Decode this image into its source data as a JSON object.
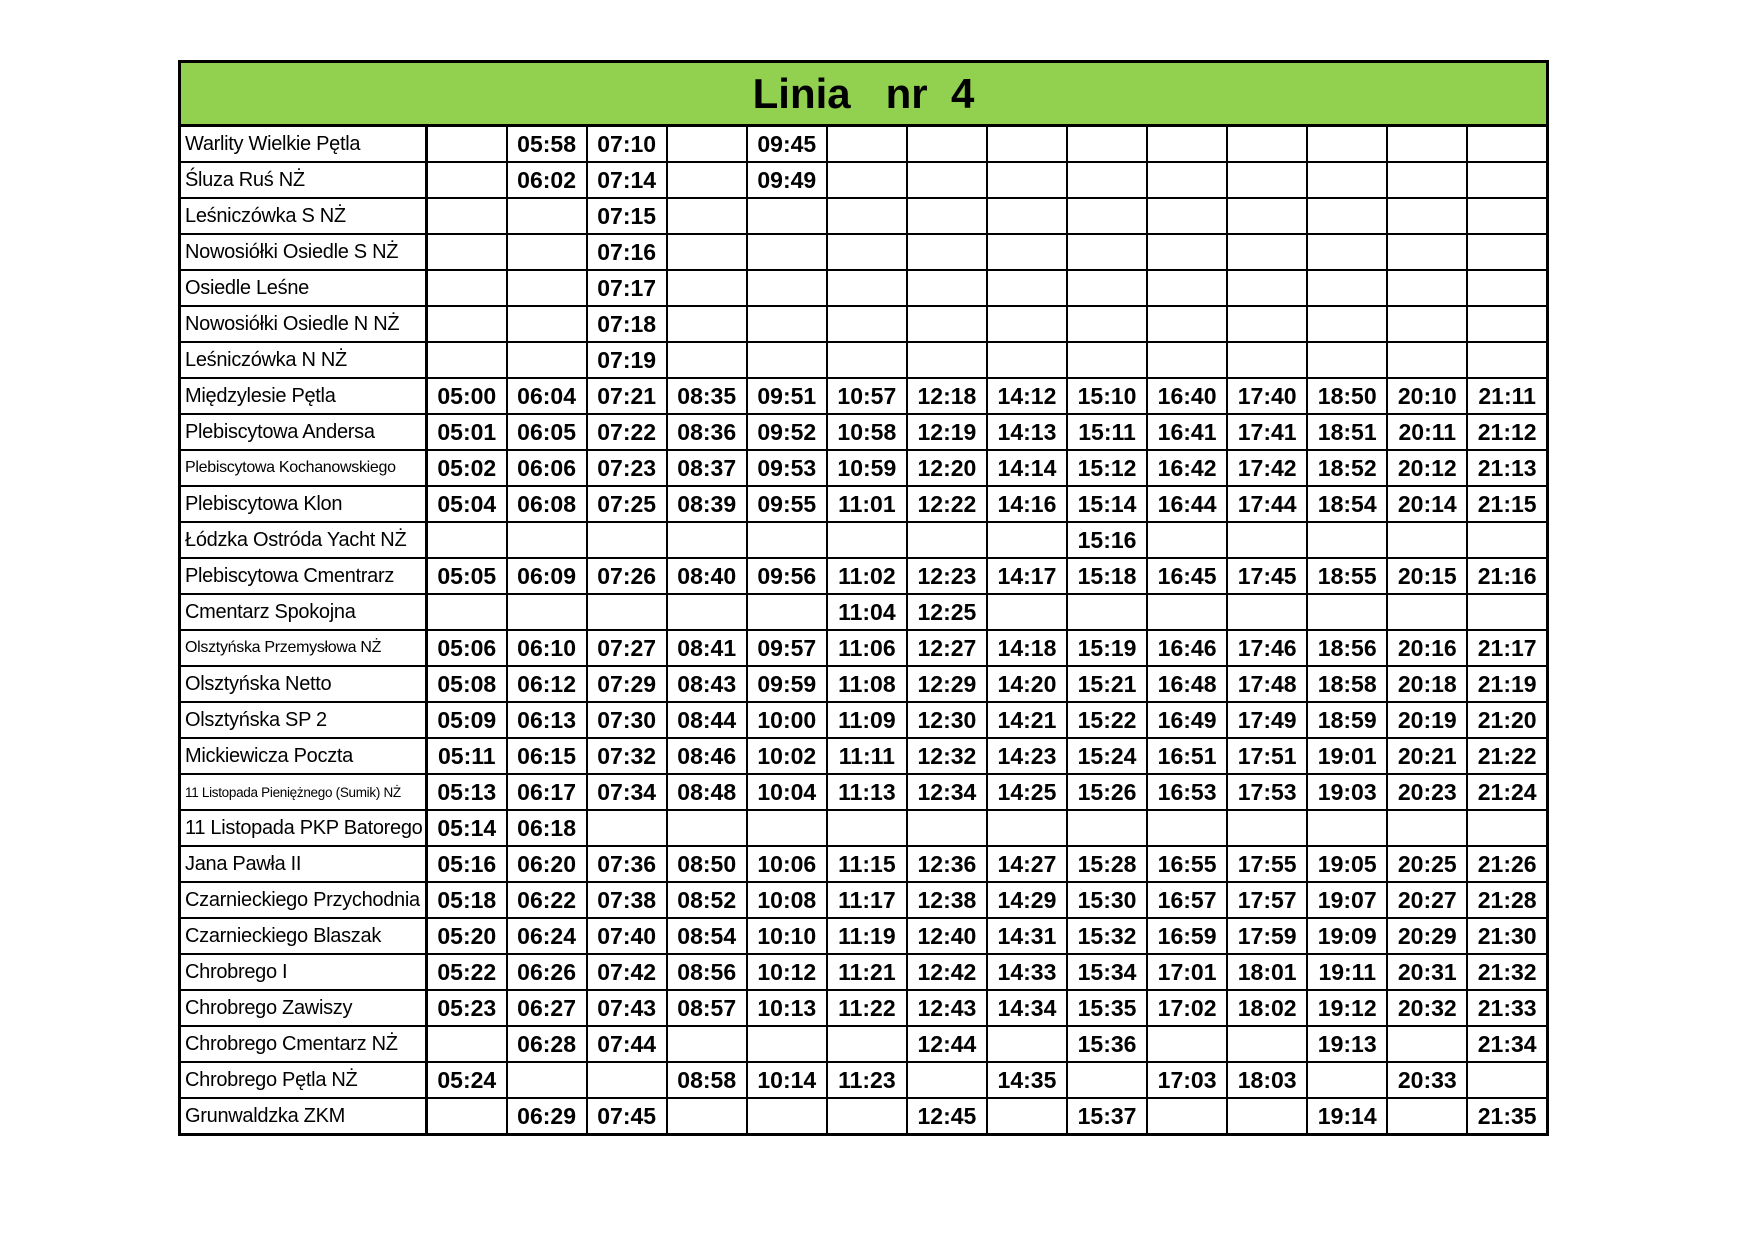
{
  "title": "Linia   nr  4",
  "rows": [
    {
      "stop": "Warlity Wielkie Pętla",
      "times": [
        null,
        "05:58",
        "07:10",
        null,
        "09:45",
        null,
        null,
        null,
        null,
        null,
        null,
        null,
        null,
        null
      ]
    },
    {
      "stop": "Śluza Ruś NŻ",
      "times": [
        null,
        "06:02",
        "07:14",
        null,
        "09:49",
        null,
        null,
        null,
        null,
        null,
        null,
        null,
        null,
        null
      ]
    },
    {
      "stop": "Leśniczówka S NŻ",
      "times": [
        null,
        null,
        "07:15",
        null,
        null,
        null,
        null,
        null,
        null,
        null,
        null,
        null,
        null,
        null
      ]
    },
    {
      "stop": "Nowosiółki Osiedle S NŻ",
      "times": [
        null,
        null,
        "07:16",
        null,
        null,
        null,
        null,
        null,
        null,
        null,
        null,
        null,
        null,
        null
      ]
    },
    {
      "stop": "Osiedle Leśne",
      "times": [
        null,
        null,
        "07:17",
        null,
        null,
        null,
        null,
        null,
        null,
        null,
        null,
        null,
        null,
        null
      ]
    },
    {
      "stop": "Nowosiółki Osiedle N NŻ",
      "times": [
        null,
        null,
        "07:18",
        null,
        null,
        null,
        null,
        null,
        null,
        null,
        null,
        null,
        null,
        null
      ]
    },
    {
      "stop": "Leśniczówka N NŻ",
      "times": [
        null,
        null,
        "07:19",
        null,
        null,
        null,
        null,
        null,
        null,
        null,
        null,
        null,
        null,
        null
      ]
    },
    {
      "stop": "Międzylesie Pętla",
      "times": [
        "05:00",
        "06:04",
        "07:21",
        "08:35",
        "09:51",
        "10:57",
        "12:18",
        "14:12",
        "15:10",
        "16:40",
        "17:40",
        "18:50",
        "20:10",
        "21:11"
      ]
    },
    {
      "stop": "Plebiscytowa Andersa",
      "times": [
        "05:01",
        "06:05",
        "07:22",
        "08:36",
        "09:52",
        "10:58",
        "12:19",
        "14:13",
        "15:11",
        "16:41",
        "17:41",
        "18:51",
        "20:11",
        "21:12"
      ]
    },
    {
      "stop": "Plebiscytowa Kochanowskiego",
      "small": true,
      "times": [
        "05:02",
        "06:06",
        "07:23",
        "08:37",
        "09:53",
        "10:59",
        "12:20",
        "14:14",
        "15:12",
        "16:42",
        "17:42",
        "18:52",
        "20:12",
        "21:13"
      ]
    },
    {
      "stop": "Plebiscytowa Klon",
      "times": [
        "05:04",
        "06:08",
        "07:25",
        "08:39",
        "09:55",
        "11:01",
        "12:22",
        "14:16",
        "15:14",
        "16:44",
        "17:44",
        "18:54",
        "20:14",
        "21:15"
      ]
    },
    {
      "stop": "Łódzka Ostróda Yacht NŻ",
      "times": [
        null,
        null,
        null,
        null,
        null,
        null,
        null,
        null,
        "15:16",
        null,
        null,
        null,
        null,
        null
      ]
    },
    {
      "stop": "Plebiscytowa Cmentrarz",
      "times": [
        "05:05",
        "06:09",
        "07:26",
        "08:40",
        "09:56",
        "11:02",
        "12:23",
        "14:17",
        "15:18",
        "16:45",
        "17:45",
        "18:55",
        "20:15",
        "21:16"
      ]
    },
    {
      "stop": "Cmentarz Spokojna",
      "times": [
        null,
        null,
        null,
        null,
        null,
        "11:04",
        "12:25",
        null,
        null,
        null,
        null,
        null,
        null,
        null
      ]
    },
    {
      "stop": "Olsztyńska Przemysłowa NŻ",
      "small": true,
      "times": [
        "05:06",
        "06:10",
        "07:27",
        "08:41",
        "09:57",
        "11:06",
        "12:27",
        "14:18",
        "15:19",
        "16:46",
        "17:46",
        "18:56",
        "20:16",
        "21:17"
      ]
    },
    {
      "stop": "Olsztyńska Netto",
      "times": [
        "05:08",
        "06:12",
        "07:29",
        "08:43",
        "09:59",
        "11:08",
        "12:29",
        "14:20",
        "15:21",
        "16:48",
        "17:48",
        "18:58",
        "20:18",
        "21:19"
      ]
    },
    {
      "stop": "Olsztyńska SP 2",
      "times": [
        "05:09",
        "06:13",
        "07:30",
        "08:44",
        "10:00",
        "11:09",
        "12:30",
        "14:21",
        "15:22",
        "16:49",
        "17:49",
        "18:59",
        "20:19",
        "21:20"
      ]
    },
    {
      "stop": "Mickiewicza Poczta",
      "times": [
        "05:11",
        "06:15",
        "07:32",
        "08:46",
        "10:02",
        "11:11",
        "12:32",
        "14:23",
        "15:24",
        "16:51",
        "17:51",
        "19:01",
        "20:21",
        "21:22"
      ]
    },
    {
      "stop": "11 Listopada Pieniężnego (Sumik) NŻ",
      "tiny": true,
      "times": [
        "05:13",
        "06:17",
        "07:34",
        "08:48",
        "10:04",
        "11:13",
        "12:34",
        "14:25",
        "15:26",
        "16:53",
        "17:53",
        "19:03",
        "20:23",
        "21:24"
      ]
    },
    {
      "stop": "11 Listopada PKP Batorego",
      "times": [
        "05:14",
        "06:18",
        null,
        null,
        null,
        null,
        null,
        null,
        null,
        null,
        null,
        null,
        null,
        null
      ]
    },
    {
      "stop": "Jana Pawła II",
      "times": [
        "05:16",
        "06:20",
        "07:36",
        "08:50",
        "10:06",
        "11:15",
        "12:36",
        "14:27",
        "15:28",
        "16:55",
        "17:55",
        "19:05",
        "20:25",
        "21:26"
      ]
    },
    {
      "stop": "Czarnieckiego Przychodnia",
      "times": [
        "05:18",
        "06:22",
        "07:38",
        "08:52",
        "10:08",
        "11:17",
        "12:38",
        "14:29",
        "15:30",
        "16:57",
        "17:57",
        "19:07",
        "20:27",
        "21:28"
      ]
    },
    {
      "stop": "Czarnieckiego Blaszak",
      "times": [
        "05:20",
        "06:24",
        "07:40",
        "08:54",
        "10:10",
        "11:19",
        "12:40",
        "14:31",
        "15:32",
        "16:59",
        "17:59",
        "19:09",
        "20:29",
        "21:30"
      ]
    },
    {
      "stop": "Chrobrego I",
      "times": [
        "05:22",
        "06:26",
        "07:42",
        "08:56",
        "10:12",
        "11:21",
        "12:42",
        "14:33",
        "15:34",
        "17:01",
        "18:01",
        "19:11",
        "20:31",
        "21:32"
      ]
    },
    {
      "stop": "Chrobrego Zawiszy",
      "times": [
        "05:23",
        "06:27",
        "07:43",
        "08:57",
        "10:13",
        "11:22",
        "12:43",
        "14:34",
        "15:35",
        "17:02",
        "18:02",
        "19:12",
        "20:32",
        "21:33"
      ]
    },
    {
      "stop": "Chrobrego Cmentarz NŻ",
      "times": [
        null,
        "06:28",
        "07:44",
        null,
        null,
        null,
        "12:44",
        null,
        "15:36",
        null,
        null,
        "19:13",
        null,
        "21:34"
      ]
    },
    {
      "stop": "Chrobrego Pętla NŻ",
      "times": [
        "05:24",
        null,
        null,
        "08:58",
        "10:14",
        "11:23",
        null,
        "14:35",
        null,
        "17:03",
        "18:03",
        null,
        "20:33",
        null
      ]
    },
    {
      "stop": "Grunwaldzka ZKM",
      "times": [
        null,
        "06:29",
        "07:45",
        null,
        null,
        null,
        "12:45",
        null,
        "15:37",
        null,
        null,
        "19:14",
        null,
        "21:35"
      ]
    }
  ]
}
